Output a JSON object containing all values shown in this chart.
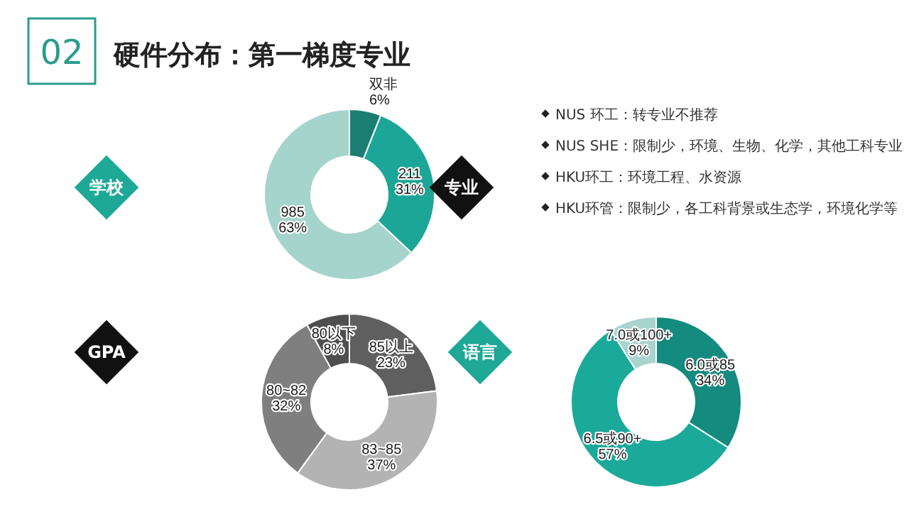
{
  "chart_data": [
    {
      "type": "other",
      "title": "硬件分布：第一梯度专业",
      "annotations": [
        "02"
      ]
    },
    {
      "type": "donut",
      "title": "学校",
      "categories": [
        "双非",
        "211",
        "985"
      ],
      "values": [
        6,
        31,
        63
      ],
      "value_labels": [
        "6%",
        "31%",
        "63%"
      ],
      "colors": [
        "#1a7f72",
        "#1ba697",
        "#a5d4cc"
      ]
    },
    {
      "type": "other",
      "title": "专业",
      "annotations": [
        "NUS 环工：转专业不推荐",
        "NUS SHE：限制少，环境、生物、化学，其他工科专业",
        "HKU环工：环境工程、水资源",
        "HKU环管：限制少，各工科背景或生态学，环境化学等"
      ]
    },
    {
      "type": "donut",
      "title": "GPA",
      "categories": [
        "85以上",
        "83~85",
        "80~82",
        "80以下"
      ],
      "values": [
        23,
        37,
        32,
        8
      ],
      "value_labels": [
        "23%",
        "37%",
        "32%",
        "8%"
      ],
      "colors": [
        "#5f5f5f",
        "#b3b3b3",
        "#7f7f7f",
        "#4f4f4f"
      ]
    },
    {
      "type": "donut",
      "title": "语言",
      "categories": [
        "6.0或85",
        "6.5或90+",
        "7.0或100+"
      ],
      "values": [
        34,
        57,
        9
      ],
      "value_labels": [
        "34%",
        "57%",
        "9%"
      ],
      "colors": [
        "#158a7e",
        "#1ba99a",
        "#a8d4cd"
      ]
    }
  ]
}
